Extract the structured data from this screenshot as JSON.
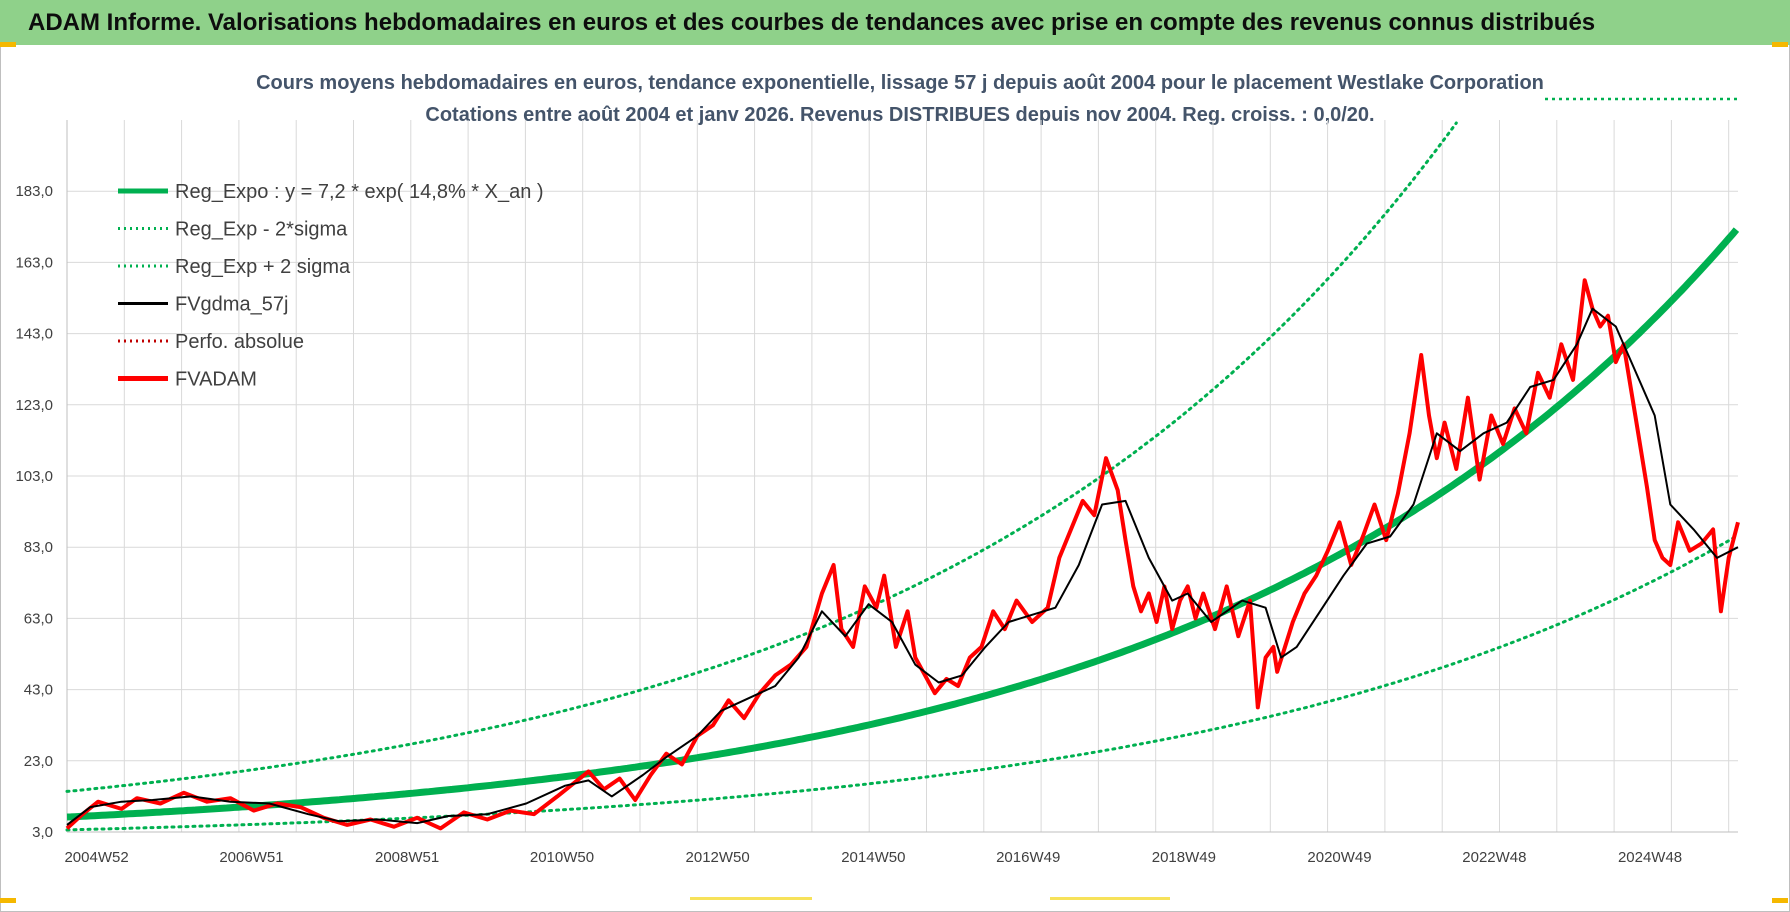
{
  "banner": {
    "title": "ADAM Informe. Valorisations hebdomadaires en euros et des courbes de tendances avec prise en compte des revenus connus distribués"
  },
  "colors": {
    "banner_bg": "#8fd18a",
    "green": "#00b050",
    "red": "#ff0000",
    "black": "#000000",
    "grid": "#d9d9d9"
  },
  "chart_data": {
    "type": "line",
    "title": "Cours moyens hebdomadaires en euros, tendance exponentielle, lissage 57 j depuis août 2004 pour le placement Westlake Corporation",
    "subtitle": "Cotations entre août 2004 et janv 2026. Revenus DISTRIBUES depuis nov 2004. Reg. croiss. : 0,0/20.",
    "x_tick_labels": [
      "2004W52",
      "2006W51",
      "2008W51",
      "2010W50",
      "2012W50",
      "2014W50",
      "2016W49",
      "2018W49",
      "2020W49",
      "2022W48",
      "2024W48"
    ],
    "x_tick_years": [
      2004.98,
      2006.97,
      2008.97,
      2010.96,
      2012.96,
      2014.96,
      2016.95,
      2018.95,
      2020.95,
      2022.94,
      2024.94
    ],
    "x_range": [
      2004.6,
      2026.07
    ],
    "ylim": [
      3,
      203
    ],
    "y_tick_labels": [
      "3,0",
      "23,0",
      "43,0",
      "63,0",
      "83,0",
      "103,0",
      "123,0",
      "143,0",
      "163,0",
      "183,0"
    ],
    "y_ticks": [
      3,
      23,
      43,
      63,
      83,
      103,
      123,
      143,
      163,
      183
    ],
    "grid": true,
    "legend_position": "top-left",
    "regression": {
      "a": 7.2,
      "rate": 0.148,
      "x0": 2004.6,
      "sigma_factor_low": 0.5,
      "sigma_factor_high": 2.0
    },
    "series": [
      {
        "name": "Reg_Expo : y = 7,2 * exp( 14,8% *  X_an )",
        "color": "#00b050",
        "style": "solid-thick"
      },
      {
        "name": "Reg_Exp - 2*sigma",
        "color": "#00b050",
        "style": "dotted"
      },
      {
        "name": "Reg_Exp + 2 sigma",
        "color": "#00b050",
        "style": "dotted"
      },
      {
        "name": "FVgdma_57j",
        "color": "#000000",
        "style": "solid-thin",
        "x": [
          2004.6,
          2004.9,
          2005.3,
          2005.7,
          2006.2,
          2006.7,
          2007.2,
          2007.7,
          2008.1,
          2008.6,
          2009.1,
          2009.5,
          2010.0,
          2010.5,
          2011.0,
          2011.3,
          2011.6,
          2012.0,
          2012.3,
          2012.7,
          2013.0,
          2013.3,
          2013.7,
          2014.0,
          2014.3,
          2014.6,
          2014.9,
          2015.2,
          2015.5,
          2015.8,
          2016.1,
          2016.4,
          2016.7,
          2017.0,
          2017.3,
          2017.6,
          2017.9,
          2018.2,
          2018.5,
          2018.8,
          2019.0,
          2019.3,
          2019.7,
          2020.0,
          2020.2,
          2020.4,
          2020.7,
          2021.0,
          2021.3,
          2021.6,
          2021.9,
          2022.2,
          2022.5,
          2022.8,
          2023.1,
          2023.4,
          2023.7,
          2024.0,
          2024.2,
          2024.5,
          2024.7,
          2025.0,
          2025.2,
          2025.5,
          2025.8,
          2026.07
        ],
        "values": [
          5.0,
          10.0,
          11.5,
          12.0,
          13.0,
          11.5,
          11.0,
          8.0,
          6.0,
          6.5,
          5.5,
          7.5,
          8.0,
          11.0,
          16.0,
          17.5,
          13.0,
          19.0,
          24.0,
          30.0,
          37.0,
          40.0,
          44.0,
          52.0,
          65.0,
          58.0,
          67.0,
          62.0,
          50.0,
          45.0,
          47.0,
          55.0,
          62.0,
          64.0,
          66.0,
          78.0,
          95.0,
          96.0,
          80.0,
          68.0,
          70.0,
          62.0,
          68.0,
          66.0,
          52.0,
          55.0,
          65.0,
          75.0,
          84.0,
          86.0,
          95.0,
          115.0,
          110.0,
          115.0,
          118.0,
          128.0,
          130.0,
          140.0,
          150.0,
          145.0,
          135.0,
          120.0,
          95.0,
          88.0,
          80.0,
          83.0
        ]
      },
      {
        "name": "Perfo. absolue",
        "color": "#c00000",
        "style": "dotted"
      },
      {
        "name": "FVADAM",
        "color": "#ff0000",
        "style": "solid-thick",
        "x": [
          2004.6,
          2004.8,
          2005.0,
          2005.3,
          2005.5,
          2005.8,
          2006.1,
          2006.4,
          2006.7,
          2007.0,
          2007.3,
          2007.6,
          2007.9,
          2008.2,
          2008.5,
          2008.8,
          2009.1,
          2009.4,
          2009.7,
          2010.0,
          2010.3,
          2010.6,
          2010.9,
          2011.1,
          2011.3,
          2011.5,
          2011.7,
          2011.9,
          2012.1,
          2012.3,
          2012.5,
          2012.7,
          2012.9,
          2013.1,
          2013.3,
          2013.5,
          2013.7,
          2013.9,
          2014.1,
          2014.3,
          2014.45,
          2014.55,
          2014.7,
          2014.85,
          2015.0,
          2015.1,
          2015.25,
          2015.4,
          2015.5,
          2015.6,
          2015.75,
          2015.9,
          2016.05,
          2016.2,
          2016.35,
          2016.5,
          2016.65,
          2016.8,
          2017.0,
          2017.2,
          2017.35,
          2017.5,
          2017.65,
          2017.8,
          2017.95,
          2018.1,
          2018.2,
          2018.3,
          2018.4,
          2018.5,
          2018.6,
          2018.7,
          2018.8,
          2018.9,
          2019.0,
          2019.1,
          2019.2,
          2019.35,
          2019.5,
          2019.65,
          2019.8,
          2019.9,
          2020.0,
          2020.1,
          2020.15,
          2020.25,
          2020.35,
          2020.5,
          2020.65,
          2020.8,
          2020.95,
          2021.1,
          2021.25,
          2021.4,
          2021.55,
          2021.7,
          2021.85,
          2022.0,
          2022.1,
          2022.2,
          2022.3,
          2022.45,
          2022.6,
          2022.75,
          2022.9,
          2023.05,
          2023.2,
          2023.35,
          2023.5,
          2023.65,
          2023.8,
          2023.95,
          2024.1,
          2024.2,
          2024.3,
          2024.4,
          2024.5,
          2024.6,
          2024.75,
          2024.9,
          2025.0,
          2025.1,
          2025.2,
          2025.3,
          2025.45,
          2025.6,
          2025.75,
          2025.85,
          2025.95,
          2026.07
        ],
        "values": [
          4.0,
          8.0,
          11.5,
          9.5,
          12.5,
          11.0,
          14.0,
          11.5,
          12.5,
          9.0,
          11.0,
          10.0,
          7.0,
          5.0,
          6.5,
          4.5,
          7.0,
          4.0,
          8.5,
          6.5,
          9.0,
          8.0,
          13.0,
          16.5,
          20.0,
          15.0,
          18.0,
          12.0,
          19.0,
          25.0,
          22.0,
          30.0,
          33.0,
          40.0,
          35.0,
          42.0,
          47.0,
          50.0,
          55.0,
          70.0,
          78.0,
          60.0,
          55.0,
          72.0,
          66.0,
          75.0,
          55.0,
          65.0,
          52.0,
          48.0,
          42.0,
          46.0,
          44.0,
          52.0,
          55.0,
          65.0,
          60.0,
          68.0,
          62.0,
          66.0,
          80.0,
          88.0,
          96.0,
          92.0,
          108.0,
          99.0,
          85.0,
          72.0,
          65.0,
          70.0,
          62.0,
          72.0,
          60.0,
          68.0,
          72.0,
          63.0,
          70.0,
          60.0,
          72.0,
          58.0,
          68.0,
          38.0,
          52.0,
          55.0,
          48.0,
          55.0,
          62.0,
          70.0,
          75.0,
          82.0,
          90.0,
          78.0,
          86.0,
          95.0,
          85.0,
          98.0,
          115.0,
          137.0,
          120.0,
          108.0,
          118.0,
          105.0,
          125.0,
          102.0,
          120.0,
          112.0,
          122.0,
          115.0,
          132.0,
          125.0,
          140.0,
          130.0,
          158.0,
          150.0,
          145.0,
          148.0,
          135.0,
          140.0,
          120.0,
          100.0,
          85.0,
          80.0,
          78.0,
          90.0,
          82.0,
          84.0,
          88.0,
          65.0,
          80.0,
          90.0
        ]
      }
    ]
  }
}
